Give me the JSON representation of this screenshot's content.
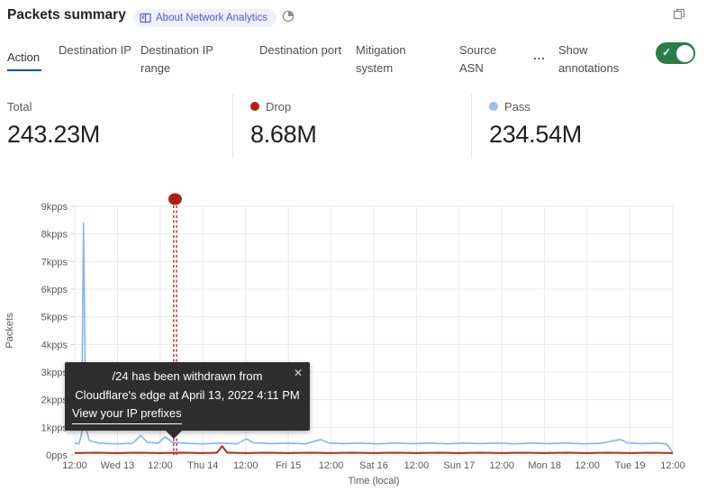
{
  "header": {
    "title": "Packets summary",
    "badge_label": "About Network Analytics"
  },
  "tabs": {
    "items": [
      {
        "label": "Action",
        "active": true
      },
      {
        "label": "Destination IP",
        "active": false
      },
      {
        "label": "Destination IP range",
        "active": false
      },
      {
        "label": "Destination port",
        "active": false
      },
      {
        "label": "Mitigation system",
        "active": false
      },
      {
        "label": "Source ASN",
        "active": false
      }
    ],
    "more_label": "...",
    "annotations_label": "Show annotations",
    "annotations_toggle_state": "on"
  },
  "stats": [
    {
      "label": "Total",
      "value": "243.23M",
      "dot_color": ""
    },
    {
      "label": "Drop",
      "value": "8.68M",
      "dot_color": "#b02114"
    },
    {
      "label": "Pass",
      "value": "234.54M",
      "dot_color": "#9ac0ef"
    }
  ],
  "chart_data": {
    "type": "line",
    "title": "Packets summary",
    "xlabel": "Time (local)",
    "ylabel": "Packets",
    "x_ticks": [
      "12:00",
      "Wed 13",
      "12:00",
      "Thu 14",
      "12:00",
      "Fri 15",
      "12:00",
      "Sat 16",
      "12:00",
      "Sun 17",
      "12:00",
      "Mon 18",
      "12:00",
      "Tue 19",
      "12:00"
    ],
    "x_tick_unit_hours": 12,
    "y_ticks": [
      "0pps",
      "1kpps",
      "2kpps",
      "3kpps",
      "4kpps",
      "5kpps",
      "6kpps",
      "7kpps",
      "8kpps",
      "9kpps"
    ],
    "ylim": [
      0,
      9
    ],
    "y_unit": "kpps",
    "grid": true,
    "legend_position": "top-stats-row",
    "series": [
      {
        "name": "Pass",
        "color": "#85b4ec",
        "width": 1.6,
        "points": [
          [
            0,
            0.42
          ],
          [
            0.1,
            0.4
          ],
          [
            0.16,
            0.75
          ],
          [
            0.205,
            8.4
          ],
          [
            0.26,
            1.0
          ],
          [
            0.34,
            0.52
          ],
          [
            0.6,
            0.42
          ],
          [
            1.0,
            0.4
          ],
          [
            1.35,
            0.42
          ],
          [
            1.55,
            0.7
          ],
          [
            1.7,
            0.46
          ],
          [
            1.95,
            0.42
          ],
          [
            2.12,
            0.66
          ],
          [
            2.28,
            0.46
          ],
          [
            2.6,
            0.42
          ],
          [
            3.0,
            0.4
          ],
          [
            3.4,
            0.43
          ],
          [
            3.8,
            0.4
          ],
          [
            4.02,
            0.58
          ],
          [
            4.18,
            0.44
          ],
          [
            4.6,
            0.41
          ],
          [
            5.0,
            0.43
          ],
          [
            5.4,
            0.4
          ],
          [
            5.76,
            0.56
          ],
          [
            5.95,
            0.43
          ],
          [
            6.3,
            0.41
          ],
          [
            6.7,
            0.43
          ],
          [
            7.1,
            0.4
          ],
          [
            7.5,
            0.43
          ],
          [
            7.9,
            0.41
          ],
          [
            8.3,
            0.43
          ],
          [
            8.7,
            0.4
          ],
          [
            9.1,
            0.43
          ],
          [
            9.5,
            0.41
          ],
          [
            9.9,
            0.43
          ],
          [
            10.3,
            0.4
          ],
          [
            10.7,
            0.43
          ],
          [
            11.1,
            0.41
          ],
          [
            11.5,
            0.43
          ],
          [
            11.9,
            0.4
          ],
          [
            12.3,
            0.42
          ],
          [
            12.78,
            0.56
          ],
          [
            12.95,
            0.43
          ],
          [
            13.3,
            0.41
          ],
          [
            13.6,
            0.43
          ],
          [
            13.85,
            0.4
          ],
          [
            14,
            0.1
          ]
        ]
      },
      {
        "name": "Drop",
        "color": "#a8311b",
        "width": 2,
        "points": [
          [
            0,
            0.07
          ],
          [
            0.5,
            0.08
          ],
          [
            1,
            0.07
          ],
          [
            1.5,
            0.08
          ],
          [
            2,
            0.07
          ],
          [
            2.5,
            0.08
          ],
          [
            3,
            0.07
          ],
          [
            3.33,
            0.08
          ],
          [
            3.45,
            0.32
          ],
          [
            3.57,
            0.08
          ],
          [
            4,
            0.07
          ],
          [
            4.5,
            0.08
          ],
          [
            5,
            0.07
          ],
          [
            5.5,
            0.08
          ],
          [
            6,
            0.07
          ],
          [
            6.5,
            0.08
          ],
          [
            7,
            0.07
          ],
          [
            7.5,
            0.08
          ],
          [
            8,
            0.07
          ],
          [
            8.5,
            0.08
          ],
          [
            9,
            0.07
          ],
          [
            9.5,
            0.08
          ],
          [
            10,
            0.07
          ],
          [
            10.5,
            0.08
          ],
          [
            11,
            0.07
          ],
          [
            11.5,
            0.08
          ],
          [
            12,
            0.07
          ],
          [
            12.5,
            0.08
          ],
          [
            13,
            0.07
          ],
          [
            13.5,
            0.08
          ],
          [
            14,
            0.07
          ]
        ]
      }
    ],
    "annotation": {
      "x": 2.35,
      "color": "#b11d12",
      "style": "double-dashed-vertical-with-dot"
    }
  },
  "tooltip": {
    "line1": "/24 has been withdrawn from",
    "line2": "Cloudflare's edge at April 13, 2022 4:11 PM",
    "link_label": "View your IP prefixes",
    "close_glyph": "✕"
  }
}
